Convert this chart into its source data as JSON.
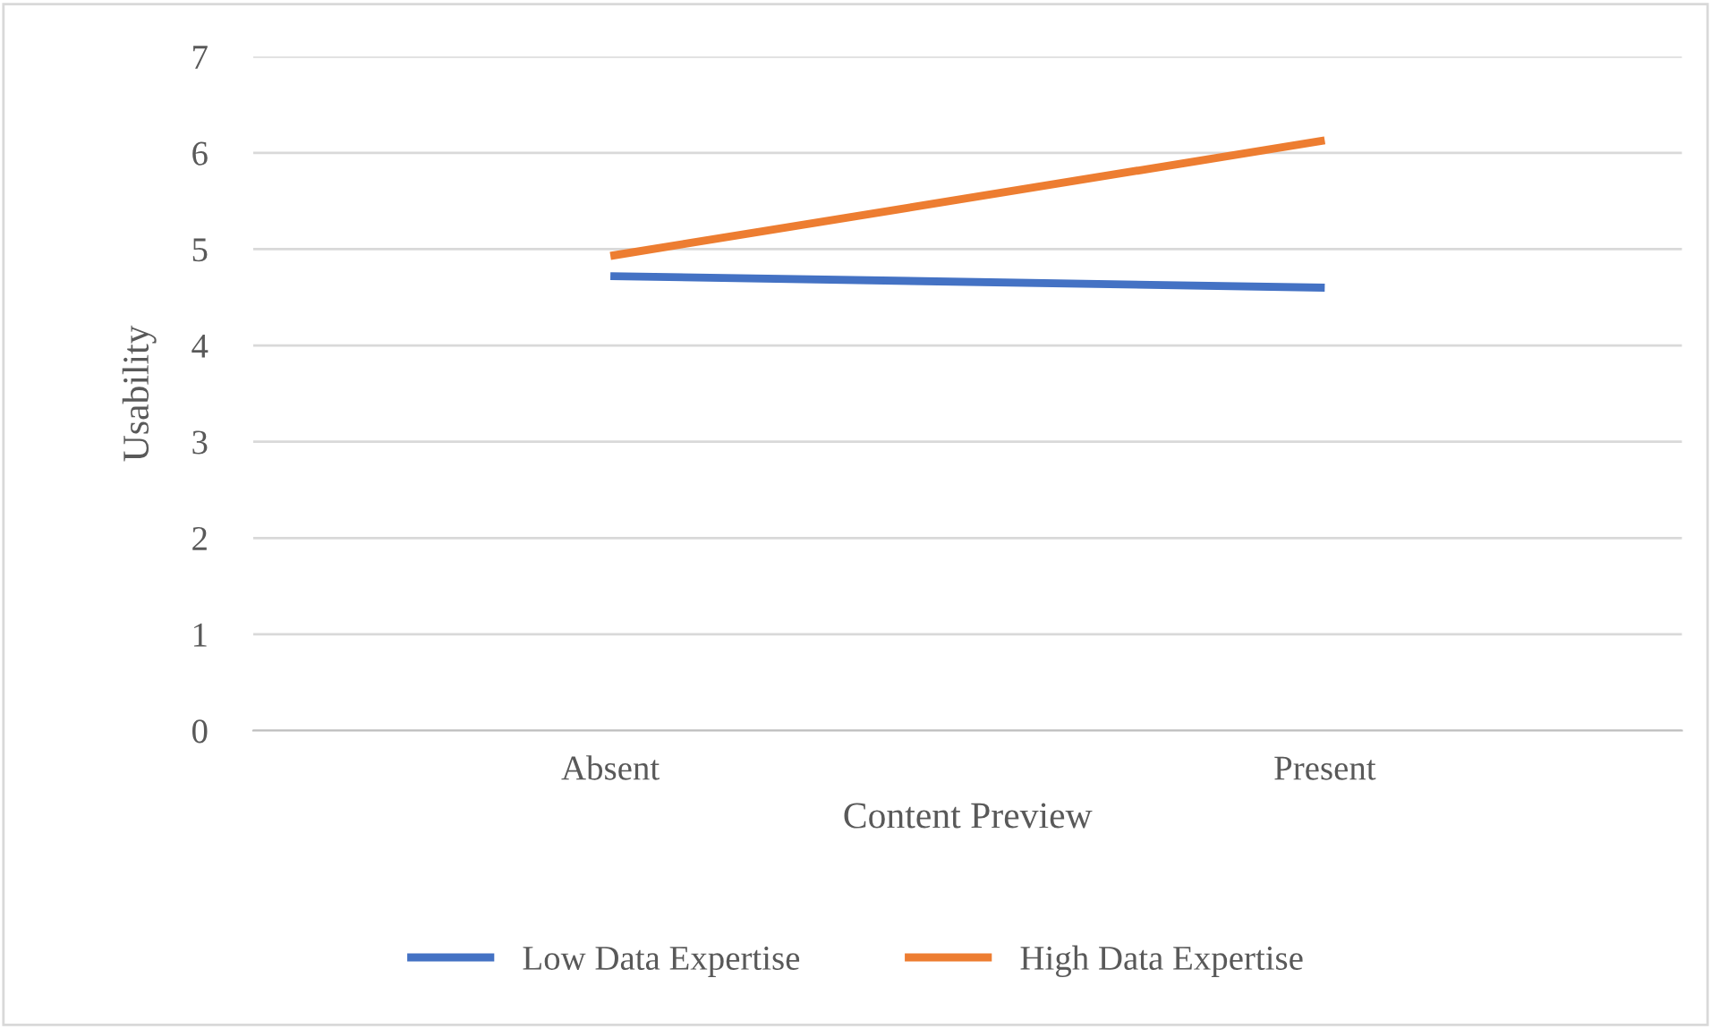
{
  "chart_data": {
    "type": "line",
    "xlabel": "Content Preview",
    "ylabel": "Usability",
    "categories": [
      "Absent",
      "Present"
    ],
    "series": [
      {
        "name": "Low Data Expertise",
        "color": "#4472c4",
        "values": [
          4.72,
          4.6
        ]
      },
      {
        "name": "High Data Expertise",
        "color": "#ed7d31",
        "values": [
          4.93,
          6.13
        ]
      }
    ],
    "ylim": [
      0,
      7
    ],
    "yticks": [
      0,
      1,
      2,
      3,
      4,
      5,
      6,
      7
    ],
    "grid": "y",
    "legend": "bottom",
    "marker": "none",
    "line_style": "solid"
  }
}
